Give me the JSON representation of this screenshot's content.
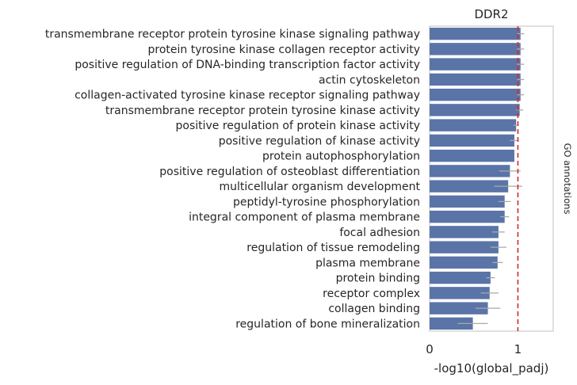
{
  "chart_data": {
    "type": "bar",
    "orientation": "horizontal",
    "title": "DDR2",
    "xlabel": "-log10(global_padj)",
    "right_label": "GO annotations",
    "xlim": [
      0,
      1.4
    ],
    "xticks": [
      0,
      1
    ],
    "reference_line": 1,
    "grid": false,
    "colors": {
      "bar": "#5a74a8",
      "error": "#a9a9a9",
      "reference": "#d62728",
      "frame": "#cccccc"
    },
    "categories": [
      "transmembrane receptor protein tyrosine kinase signaling pathway",
      "protein tyrosine kinase collagen receptor activity",
      "positive regulation of DNA-binding transcription factor activity",
      "actin cytoskeleton",
      "collagen-activated tyrosine kinase receptor signaling pathway",
      "transmembrane receptor protein tyrosine kinase activity",
      "positive regulation of protein kinase activity",
      "positive regulation of kinase activity",
      "protein autophosphorylation",
      "positive regulation of osteoblast differentiation",
      "multicellular organism development",
      "peptidyl-tyrosine phosphorylation",
      "integral component of plasma membrane",
      "focal adhesion",
      "regulation of tissue remodeling",
      "plasma membrane",
      "protein binding",
      "receptor complex",
      "collagen binding",
      "regulation of bone mineralization"
    ],
    "values": [
      1.03,
      1.03,
      1.03,
      1.03,
      1.03,
      1.02,
      0.98,
      0.96,
      0.96,
      0.91,
      0.89,
      0.85,
      0.85,
      0.78,
      0.78,
      0.77,
      0.69,
      0.68,
      0.66,
      0.49
    ],
    "error": [
      0.04,
      0.04,
      0.04,
      0.04,
      0.04,
      0.04,
      0.03,
      0.05,
      0.0,
      0.12,
      0.16,
      0.07,
      0.05,
      0.07,
      0.09,
      0.06,
      0.05,
      0.1,
      0.14,
      0.17
    ]
  }
}
